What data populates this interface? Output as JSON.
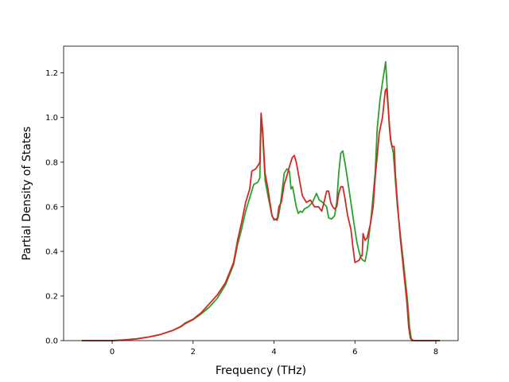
{
  "chart_data": {
    "type": "line",
    "title": "",
    "xlabel": "Frequency (THz)",
    "ylabel": "Partial Density of States",
    "xlim": [
      -1.2,
      8.55
    ],
    "ylim": [
      0.0,
      1.32
    ],
    "xticks": [
      0,
      2,
      4,
      6,
      8
    ],
    "yticks": [
      0.0,
      0.2,
      0.4,
      0.6,
      0.8,
      1.0,
      1.2
    ],
    "xtick_labels": [
      "0",
      "2",
      "4",
      "6",
      "8"
    ],
    "ytick_labels": [
      "0.0",
      "0.2",
      "0.4",
      "0.6",
      "0.8",
      "1.0",
      "1.2"
    ],
    "grid": false,
    "series": [
      {
        "color": "#2ca02c",
        "points": [
          [
            -0.75,
            0.0
          ],
          [
            0.0,
            0.0
          ],
          [
            0.3,
            0.003
          ],
          [
            0.6,
            0.008
          ],
          [
            0.9,
            0.016
          ],
          [
            1.2,
            0.028
          ],
          [
            1.5,
            0.046
          ],
          [
            1.7,
            0.062
          ],
          [
            1.8,
            0.075
          ],
          [
            2.0,
            0.094
          ],
          [
            2.2,
            0.12
          ],
          [
            2.4,
            0.15
          ],
          [
            2.6,
            0.19
          ],
          [
            2.8,
            0.25
          ],
          [
            3.0,
            0.34
          ],
          [
            3.1,
            0.43
          ],
          [
            3.2,
            0.5
          ],
          [
            3.3,
            0.58
          ],
          [
            3.4,
            0.64
          ],
          [
            3.5,
            0.7
          ],
          [
            3.6,
            0.71
          ],
          [
            3.65,
            0.73
          ],
          [
            3.68,
            1.0
          ],
          [
            3.72,
            0.92
          ],
          [
            3.78,
            0.72
          ],
          [
            3.85,
            0.65
          ],
          [
            3.95,
            0.56
          ],
          [
            4.0,
            0.54
          ],
          [
            4.05,
            0.545
          ],
          [
            4.1,
            0.55
          ],
          [
            4.15,
            0.6
          ],
          [
            4.2,
            0.67
          ],
          [
            4.25,
            0.75
          ],
          [
            4.32,
            0.77
          ],
          [
            4.38,
            0.76
          ],
          [
            4.42,
            0.68
          ],
          [
            4.46,
            0.69
          ],
          [
            4.5,
            0.65
          ],
          [
            4.55,
            0.6
          ],
          [
            4.6,
            0.57
          ],
          [
            4.65,
            0.58
          ],
          [
            4.7,
            0.575
          ],
          [
            4.75,
            0.59
          ],
          [
            4.85,
            0.6
          ],
          [
            4.95,
            0.62
          ],
          [
            5.05,
            0.66
          ],
          [
            5.12,
            0.63
          ],
          [
            5.2,
            0.62
          ],
          [
            5.3,
            0.6
          ],
          [
            5.35,
            0.55
          ],
          [
            5.42,
            0.545
          ],
          [
            5.5,
            0.56
          ],
          [
            5.55,
            0.62
          ],
          [
            5.6,
            0.75
          ],
          [
            5.65,
            0.84
          ],
          [
            5.7,
            0.85
          ],
          [
            5.76,
            0.79
          ],
          [
            5.82,
            0.72
          ],
          [
            5.9,
            0.62
          ],
          [
            5.98,
            0.52
          ],
          [
            6.05,
            0.44
          ],
          [
            6.1,
            0.4
          ],
          [
            6.15,
            0.37
          ],
          [
            6.2,
            0.36
          ],
          [
            6.25,
            0.355
          ],
          [
            6.3,
            0.4
          ],
          [
            6.4,
            0.55
          ],
          [
            6.5,
            0.75
          ],
          [
            6.55,
            0.95
          ],
          [
            6.62,
            1.08
          ],
          [
            6.7,
            1.18
          ],
          [
            6.76,
            1.25
          ],
          [
            6.8,
            1.12
          ],
          [
            6.85,
            0.96
          ],
          [
            6.9,
            0.88
          ],
          [
            6.95,
            0.84
          ],
          [
            7.0,
            0.72
          ],
          [
            7.05,
            0.6
          ],
          [
            7.12,
            0.48
          ],
          [
            7.2,
            0.35
          ],
          [
            7.3,
            0.18
          ],
          [
            7.35,
            0.06
          ],
          [
            7.4,
            0.0
          ],
          [
            7.6,
            0.0
          ],
          [
            8.1,
            0.0
          ]
        ]
      },
      {
        "color": "#d62728",
        "points": [
          [
            -0.75,
            0.0
          ],
          [
            0.0,
            0.0
          ],
          [
            0.3,
            0.003
          ],
          [
            0.6,
            0.008
          ],
          [
            0.9,
            0.016
          ],
          [
            1.2,
            0.028
          ],
          [
            1.5,
            0.046
          ],
          [
            1.7,
            0.064
          ],
          [
            1.8,
            0.078
          ],
          [
            2.0,
            0.096
          ],
          [
            2.2,
            0.125
          ],
          [
            2.4,
            0.165
          ],
          [
            2.6,
            0.205
          ],
          [
            2.8,
            0.26
          ],
          [
            3.0,
            0.35
          ],
          [
            3.1,
            0.45
          ],
          [
            3.2,
            0.53
          ],
          [
            3.3,
            0.62
          ],
          [
            3.4,
            0.68
          ],
          [
            3.45,
            0.76
          ],
          [
            3.55,
            0.77
          ],
          [
            3.62,
            0.79
          ],
          [
            3.65,
            0.8
          ],
          [
            3.68,
            1.02
          ],
          [
            3.72,
            0.94
          ],
          [
            3.78,
            0.75
          ],
          [
            3.85,
            0.68
          ],
          [
            3.9,
            0.62
          ],
          [
            3.95,
            0.56
          ],
          [
            4.0,
            0.545
          ],
          [
            4.08,
            0.54
          ],
          [
            4.12,
            0.6
          ],
          [
            4.18,
            0.62
          ],
          [
            4.25,
            0.7
          ],
          [
            4.32,
            0.74
          ],
          [
            4.38,
            0.78
          ],
          [
            4.45,
            0.82
          ],
          [
            4.5,
            0.83
          ],
          [
            4.55,
            0.8
          ],
          [
            4.62,
            0.73
          ],
          [
            4.7,
            0.65
          ],
          [
            4.8,
            0.62
          ],
          [
            4.9,
            0.63
          ],
          [
            5.0,
            0.6
          ],
          [
            5.1,
            0.6
          ],
          [
            5.18,
            0.58
          ],
          [
            5.25,
            0.63
          ],
          [
            5.3,
            0.67
          ],
          [
            5.35,
            0.67
          ],
          [
            5.4,
            0.62
          ],
          [
            5.45,
            0.6
          ],
          [
            5.5,
            0.59
          ],
          [
            5.55,
            0.6
          ],
          [
            5.6,
            0.66
          ],
          [
            5.65,
            0.69
          ],
          [
            5.7,
            0.69
          ],
          [
            5.75,
            0.64
          ],
          [
            5.82,
            0.56
          ],
          [
            5.9,
            0.5
          ],
          [
            5.95,
            0.42
          ],
          [
            6.0,
            0.35
          ],
          [
            6.1,
            0.36
          ],
          [
            6.15,
            0.38
          ],
          [
            6.18,
            0.38
          ],
          [
            6.2,
            0.48
          ],
          [
            6.25,
            0.45
          ],
          [
            6.3,
            0.46
          ],
          [
            6.38,
            0.52
          ],
          [
            6.45,
            0.6
          ],
          [
            6.5,
            0.73
          ],
          [
            6.55,
            0.83
          ],
          [
            6.6,
            0.93
          ],
          [
            6.68,
            1.0
          ],
          [
            6.75,
            1.12
          ],
          [
            6.78,
            1.13
          ],
          [
            6.82,
            1.05
          ],
          [
            6.88,
            0.9
          ],
          [
            6.92,
            0.87
          ],
          [
            6.97,
            0.87
          ],
          [
            7.0,
            0.75
          ],
          [
            7.05,
            0.62
          ],
          [
            7.12,
            0.46
          ],
          [
            7.2,
            0.32
          ],
          [
            7.28,
            0.18
          ],
          [
            7.33,
            0.06
          ],
          [
            7.37,
            0.01
          ],
          [
            7.45,
            0.0
          ],
          [
            8.1,
            0.0
          ]
        ]
      }
    ]
  }
}
